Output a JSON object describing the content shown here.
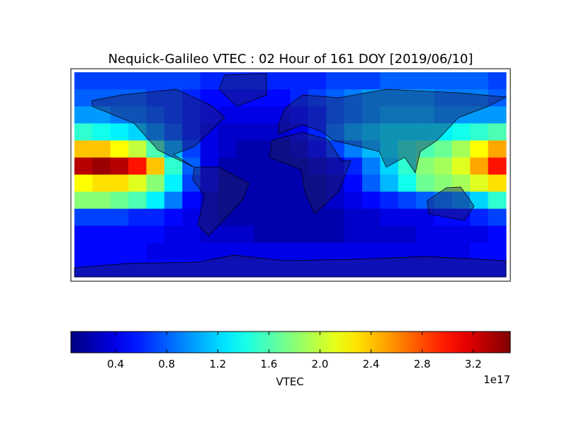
{
  "chart_data": {
    "type": "heatmap",
    "title": "Nequick-Galileo VTEC : 02 Hour of 161 DOY [2019/06/10]",
    "colorbar": {
      "label": "VTEC",
      "offset": "1e17",
      "clim": [
        0.05,
        3.49
      ],
      "ticks": [
        0.4,
        {
          "value": 0.8,
          "label": "0.8"
        },
        1.2,
        1.6,
        {
          "value": 2,
          "label": "2.0"
        },
        2.4,
        2.8,
        3.2
      ],
      "colormap": "jet"
    },
    "values": [
      [
        0.7,
        0.7,
        0.7,
        0.7,
        0.7,
        0.7,
        0.7,
        0.6,
        0.6,
        0.6,
        0.6,
        0.6,
        0.6,
        0.6,
        0.7,
        0.7,
        0.7,
        0.8,
        0.8,
        0.8,
        0.8,
        0.8,
        0.8,
        0.7
      ],
      [
        0.8,
        0.8,
        0.8,
        0.8,
        0.7,
        0.7,
        0.6,
        0.5,
        0.5,
        0.5,
        0.5,
        0.5,
        0.6,
        0.7,
        0.8,
        0.9,
        1.0,
        1.0,
        1.0,
        1.0,
        0.9,
        0.9,
        0.9,
        0.8
      ],
      [
        1.0,
        1.0,
        0.9,
        0.9,
        0.8,
        0.7,
        0.6,
        0.5,
        0.4,
        0.4,
        0.4,
        0.4,
        0.5,
        0.6,
        0.8,
        0.9,
        1.0,
        1.1,
        1.1,
        1.1,
        1.0,
        1.0,
        1.0,
        1.0
      ],
      [
        1.5,
        1.4,
        1.3,
        1.2,
        1.0,
        0.8,
        0.6,
        0.4,
        0.3,
        0.3,
        0.3,
        0.3,
        0.4,
        0.6,
        0.9,
        1.1,
        1.2,
        1.3,
        1.3,
        1.3,
        1.3,
        1.4,
        1.5,
        1.6
      ],
      [
        2.4,
        2.4,
        2.2,
        2.0,
        1.6,
        1.1,
        0.7,
        0.4,
        0.3,
        0.2,
        0.2,
        0.2,
        0.3,
        0.5,
        0.7,
        0.9,
        1.1,
        1.3,
        1.5,
        1.6,
        1.7,
        1.9,
        2.2,
        2.5
      ],
      [
        3.3,
        3.4,
        3.3,
        3.0,
        2.4,
        1.5,
        0.8,
        0.4,
        0.2,
        0.2,
        0.2,
        0.2,
        0.2,
        0.3,
        0.4,
        0.6,
        0.9,
        1.2,
        1.5,
        1.8,
        1.9,
        2.1,
        2.5,
        3.0
      ],
      [
        2.2,
        2.3,
        2.3,
        2.1,
        1.8,
        1.3,
        0.7,
        0.4,
        0.2,
        0.2,
        0.2,
        0.2,
        0.2,
        0.2,
        0.3,
        0.5,
        0.8,
        1.1,
        1.4,
        1.7,
        1.8,
        1.9,
        2.1,
        2.3
      ],
      [
        1.8,
        1.8,
        1.7,
        1.6,
        1.3,
        0.9,
        0.5,
        0.3,
        0.2,
        0.2,
        0.2,
        0.2,
        0.2,
        0.2,
        0.3,
        0.4,
        0.5,
        0.6,
        0.7,
        0.8,
        0.9,
        1.0,
        1.2,
        1.5
      ],
      [
        0.7,
        0.7,
        0.7,
        0.6,
        0.6,
        0.5,
        0.4,
        0.3,
        0.2,
        0.2,
        0.2,
        0.2,
        0.2,
        0.2,
        0.2,
        0.3,
        0.3,
        0.4,
        0.4,
        0.4,
        0.5,
        0.5,
        0.6,
        0.7
      ],
      [
        0.5,
        0.5,
        0.5,
        0.5,
        0.5,
        0.4,
        0.4,
        0.3,
        0.3,
        0.3,
        0.2,
        0.2,
        0.2,
        0.2,
        0.2,
        0.3,
        0.3,
        0.3,
        0.3,
        0.4,
        0.4,
        0.4,
        0.4,
        0.5
      ],
      [
        0.5,
        0.5,
        0.5,
        0.5,
        0.4,
        0.4,
        0.4,
        0.4,
        0.4,
        0.4,
        0.4,
        0.4,
        0.4,
        0.4,
        0.4,
        0.4,
        0.4,
        0.4,
        0.4,
        0.4,
        0.4,
        0.4,
        0.5,
        0.5
      ],
      [
        0.5,
        0.5,
        0.5,
        0.5,
        0.5,
        0.5,
        0.5,
        0.5,
        0.5,
        0.5,
        0.5,
        0.5,
        0.5,
        0.5,
        0.5,
        0.5,
        0.5,
        0.5,
        0.5,
        0.5,
        0.5,
        0.5,
        0.5,
        0.5
      ]
    ]
  }
}
